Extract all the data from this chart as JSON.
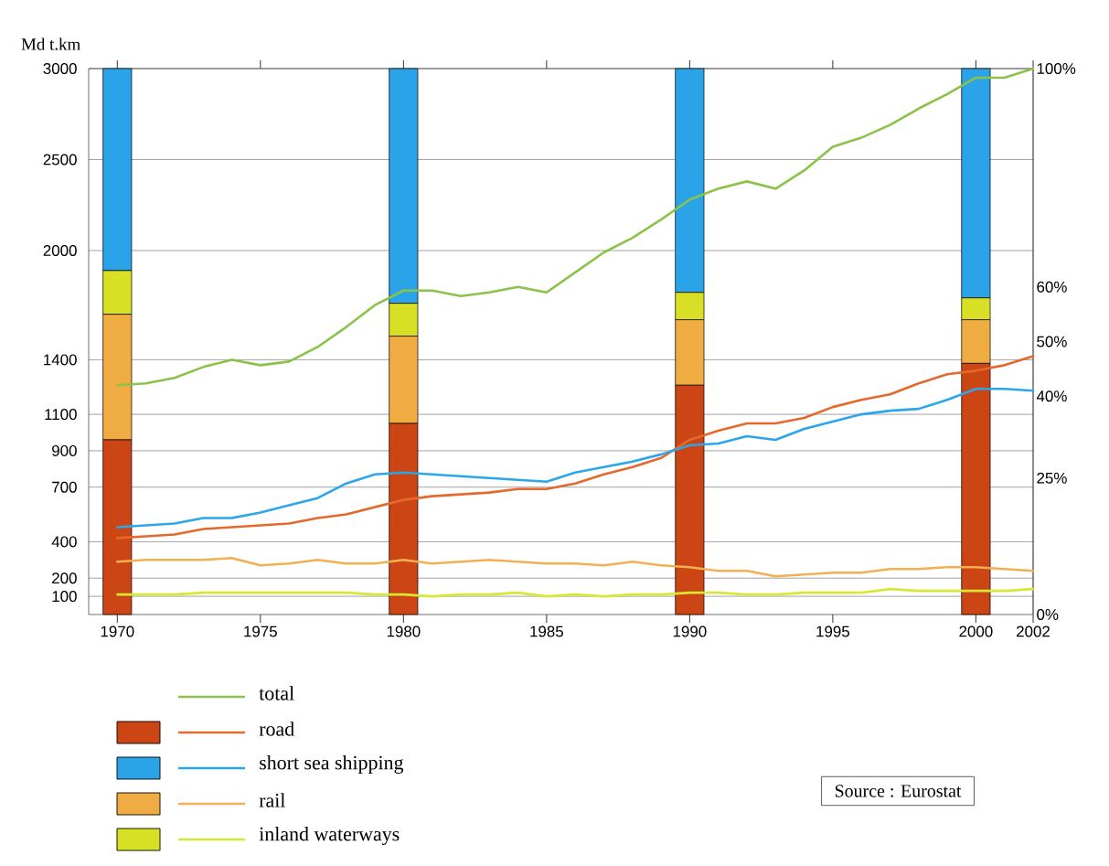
{
  "chart_data": {
    "type": "line",
    "ylabel": "Md t.km",
    "x": [
      1970,
      1971,
      1972,
      1973,
      1974,
      1975,
      1976,
      1977,
      1978,
      1979,
      1980,
      1981,
      1982,
      1983,
      1984,
      1985,
      1986,
      1987,
      1988,
      1989,
      1990,
      1991,
      1992,
      1993,
      1994,
      1995,
      1996,
      1997,
      1998,
      1999,
      2000,
      2001,
      2002
    ],
    "xlim": [
      1969,
      2002
    ],
    "xticks": [
      1970,
      1975,
      1980,
      1985,
      1990,
      1995,
      2000,
      2002
    ],
    "ylim": [
      0,
      3000
    ],
    "yticks": [
      100,
      200,
      400,
      700,
      900,
      1100,
      1400,
      2000,
      2500,
      3000
    ],
    "y2lim": [
      0,
      100
    ],
    "y2ticks": [
      {
        "value": 0,
        "label": "0%"
      },
      {
        "value": 25,
        "label": "25%"
      },
      {
        "value": 40,
        "label": "40%"
      },
      {
        "value": 50,
        "label": "50%"
      },
      {
        "value": 60,
        "label": "60%"
      },
      {
        "value": 100,
        "label": "100%"
      }
    ],
    "stacked": true,
    "grid": "y",
    "legend": "bottom",
    "annotations": [
      "Source : Eurostat"
    ],
    "series": [
      {
        "type": "bar",
        "axis": "y2",
        "x": [
          1970,
          1980,
          1990,
          2000
        ],
        "color": "#cc4514",
        "values": [
          32,
          35,
          42,
          46
        ]
      },
      {
        "type": "bar",
        "axis": "y2",
        "x": [
          1970,
          1980,
          1990,
          2000
        ],
        "color": "#efac42",
        "values": [
          23,
          16,
          12,
          8
        ]
      },
      {
        "type": "bar",
        "axis": "y2",
        "x": [
          1970,
          1980,
          1990,
          2000
        ],
        "color": "#d8e026",
        "values": [
          8,
          6,
          5,
          4
        ]
      },
      {
        "type": "bar",
        "axis": "y2",
        "x": [
          1970,
          1980,
          1990,
          2000
        ],
        "color": "#2aa3e8",
        "values": [
          37,
          43,
          41,
          42
        ]
      },
      {
        "name": "total",
        "color": "#8bc34a",
        "values": [
          1260,
          1270,
          1300,
          1360,
          1400,
          1370,
          1390,
          1470,
          1580,
          1700,
          1780,
          1780,
          1750,
          1770,
          1800,
          1770,
          1880,
          1990,
          2070,
          2170,
          2280,
          2340,
          2380,
          2340,
          2440,
          2570,
          2620,
          2690,
          2780,
          2860,
          2950,
          2950,
          3000
        ]
      },
      {
        "name": "road",
        "color": "#e4692c",
        "values": [
          420,
          430,
          440,
          470,
          480,
          490,
          500,
          530,
          550,
          590,
          630,
          650,
          660,
          670,
          690,
          690,
          720,
          770,
          810,
          860,
          960,
          1010,
          1050,
          1050,
          1080,
          1140,
          1180,
          1210,
          1270,
          1320,
          1340,
          1370,
          1420
        ]
      },
      {
        "name": "short sea shipping",
        "color": "#2ca6ea",
        "values": [
          480,
          490,
          500,
          530,
          530,
          560,
          600,
          640,
          720,
          770,
          780,
          770,
          760,
          750,
          740,
          730,
          780,
          810,
          840,
          880,
          930,
          940,
          980,
          960,
          1020,
          1060,
          1100,
          1120,
          1130,
          1180,
          1240,
          1240,
          1230
        ]
      },
      {
        "name": "rail",
        "color": "#f2b054",
        "values": [
          290,
          300,
          300,
          300,
          310,
          270,
          280,
          300,
          280,
          280,
          300,
          280,
          290,
          300,
          290,
          280,
          280,
          270,
          290,
          270,
          260,
          240,
          240,
          210,
          220,
          230,
          230,
          250,
          250,
          260,
          260,
          250,
          240
        ]
      },
      {
        "name": "inland waterways",
        "color": "#d4e834",
        "values": [
          110,
          110,
          110,
          120,
          120,
          120,
          120,
          120,
          120,
          110,
          110,
          100,
          110,
          110,
          120,
          100,
          110,
          100,
          110,
          110,
          120,
          120,
          110,
          110,
          120,
          120,
          120,
          140,
          130,
          130,
          130,
          130,
          140
        ]
      }
    ]
  }
}
